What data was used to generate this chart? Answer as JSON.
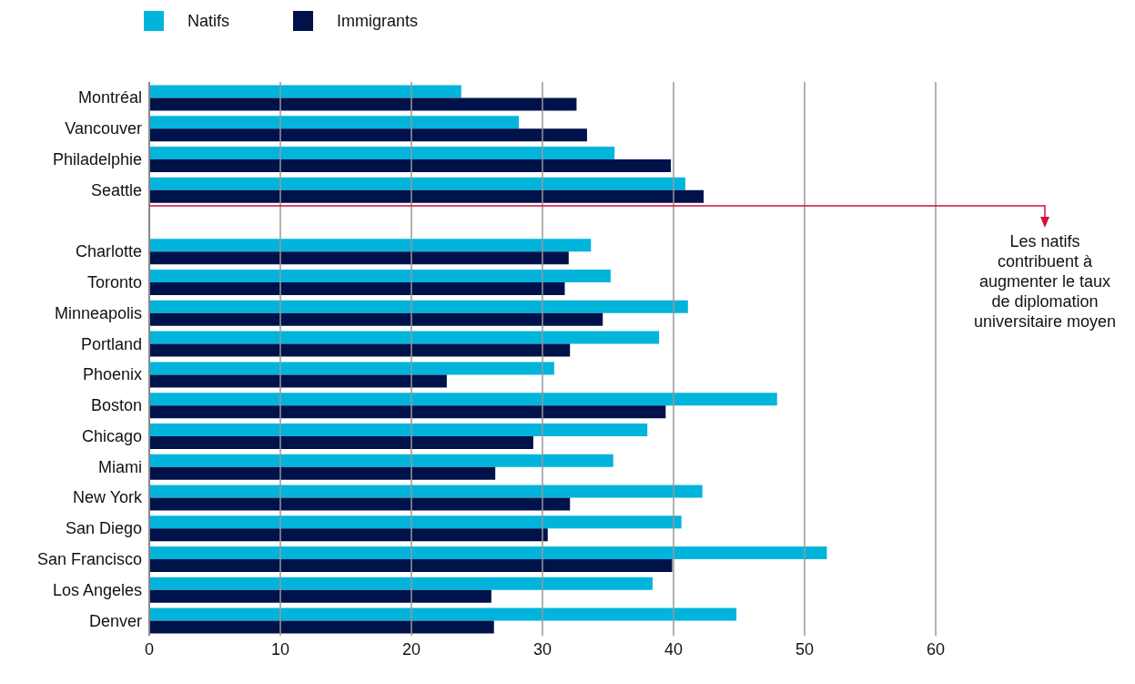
{
  "chart_data": {
    "type": "bar",
    "orientation": "horizontal",
    "categories": [
      "Montréal",
      "Vancouver",
      "Philadelphie",
      "Seattle",
      null,
      "Charlotte",
      "Toronto",
      "Minneapolis",
      "Portland",
      "Phoenix",
      "Boston",
      "Chicago",
      "Miami",
      "New York",
      "San Diego",
      "San Francisco",
      "Los Angeles",
      "Denver"
    ],
    "series": [
      {
        "name": "Natifs",
        "color": "#00b4dc",
        "values": [
          23.8,
          28.2,
          35.5,
          40.9,
          null,
          33.7,
          35.2,
          41.1,
          38.9,
          30.9,
          47.9,
          38.0,
          35.4,
          42.2,
          40.6,
          51.7,
          38.4,
          44.8
        ]
      },
      {
        "name": "Immigrants",
        "color": "#00124a",
        "values": [
          32.6,
          33.4,
          39.8,
          42.3,
          null,
          32.0,
          31.7,
          34.6,
          32.1,
          22.7,
          39.4,
          29.3,
          26.4,
          32.1,
          30.4,
          39.9,
          26.1,
          26.3
        ]
      }
    ],
    "xlim": [
      0,
      60
    ],
    "xticks": [
      0,
      10,
      20,
      30,
      40,
      50,
      60
    ],
    "grid": "x",
    "legend": "top left",
    "annotations": [
      "Les natifs contribuent à augmenter le taux de diplomation universitaire moyen"
    ]
  }
}
